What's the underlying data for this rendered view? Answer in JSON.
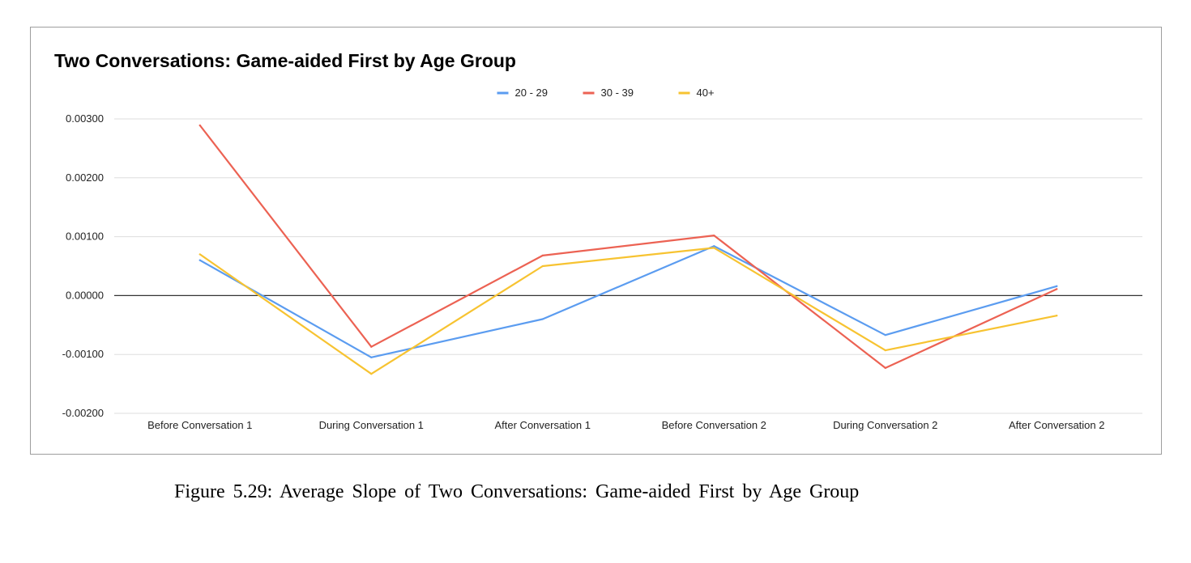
{
  "chart_data": {
    "type": "line",
    "title": "Two Conversations: Game-aided First by Age Group",
    "xlabel": "",
    "ylabel": "",
    "categories": [
      "Before Conversation 1",
      "During Conversation 1",
      "After Conversation 1",
      "Before Conversation 2",
      "During Conversation 2",
      "After Conversation 2"
    ],
    "series": [
      {
        "name": "20 - 29",
        "color": "#5b9cf0",
        "values": [
          0.0006,
          -0.00105,
          -0.0004,
          0.00084,
          -0.00067,
          0.00016
        ]
      },
      {
        "name": "30 - 39",
        "color": "#ec6253",
        "values": [
          0.00289,
          -0.00087,
          0.00068,
          0.00102,
          -0.00123,
          0.00011
        ]
      },
      {
        "name": "40+",
        "color": "#f7c331",
        "values": [
          0.0007,
          -0.00133,
          0.0005,
          0.00081,
          -0.00093,
          -0.00034
        ]
      }
    ],
    "ylim": [
      -0.002,
      0.003
    ],
    "yticks": [
      0.003,
      0.002,
      0.001,
      0.0,
      -0.001,
      -0.002
    ],
    "ytick_labels": [
      "0.00300",
      "0.00200",
      "0.00100",
      "0.00000",
      "-0.00100",
      "-0.00200"
    ],
    "grid": true,
    "legend_position": "top-center",
    "zero_line_color": "#333333",
    "grid_color": "#dddddd"
  },
  "caption": "Figure 5.29: Average Slope of Two Conversations: Game-aided First by Age Group"
}
